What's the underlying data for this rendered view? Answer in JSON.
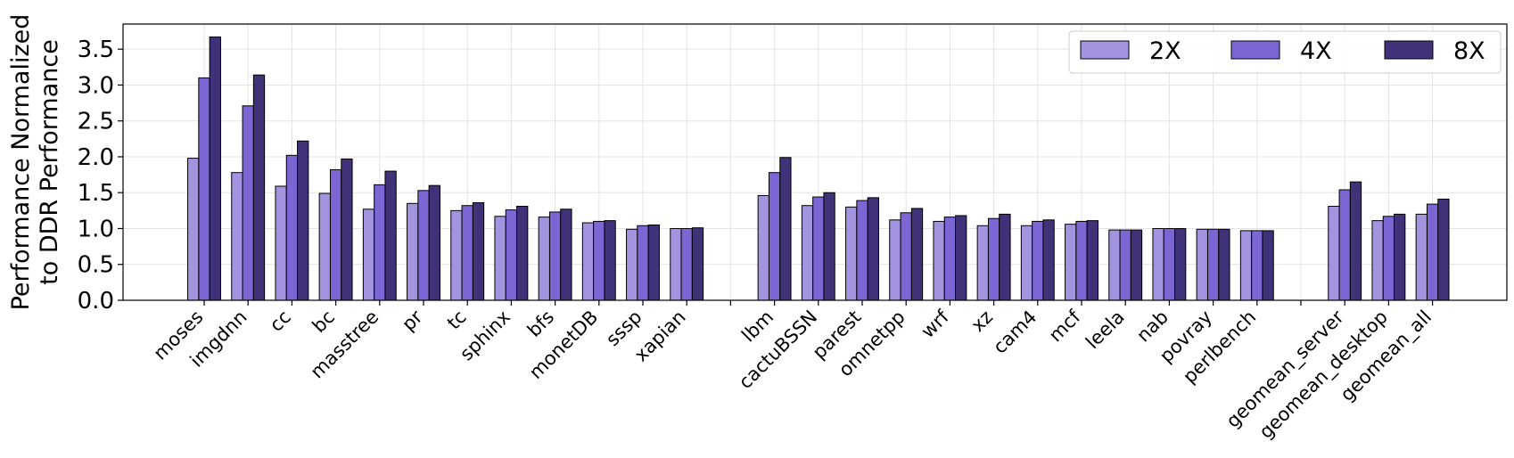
{
  "chart_data": {
    "type": "bar",
    "ylabel_line1": "Performance Normalized",
    "ylabel_line2": "to DDR Performance",
    "ylim": [
      0,
      3.85
    ],
    "yticks": [
      0.0,
      0.5,
      1.0,
      1.5,
      2.0,
      2.5,
      3.0,
      3.5
    ],
    "ytick_labels": [
      "0.0",
      "0.5",
      "1.0",
      "1.5",
      "2.0",
      "2.5",
      "3.0",
      "3.5"
    ],
    "grid": true,
    "legend_position": "top-right",
    "categories": [
      "moses",
      "imgdnn",
      "cc",
      "bc",
      "masstree",
      "pr",
      "tc",
      "sphinx",
      "bfs",
      "monetDB",
      "sssp",
      "xapian",
      "",
      "lbm",
      "cactuBSSN",
      "parest",
      "omnetpp",
      "wrf",
      "xz",
      "cam4",
      "mcf",
      "leela",
      "nab",
      "povray",
      "perlbench",
      "",
      "geomean_server",
      "geomean_desktop",
      "geomean_all"
    ],
    "series": [
      {
        "name": "2X",
        "color": "#a394e0",
        "values": [
          1.98,
          1.78,
          1.59,
          1.49,
          1.27,
          1.35,
          1.25,
          1.17,
          1.16,
          1.08,
          0.99,
          1.0,
          null,
          1.46,
          1.32,
          1.3,
          1.12,
          1.1,
          1.04,
          1.04,
          1.06,
          0.98,
          1.0,
          0.99,
          0.97,
          null,
          1.31,
          1.11,
          1.2
        ]
      },
      {
        "name": "4X",
        "color": "#7b66d4",
        "values": [
          3.1,
          2.71,
          2.02,
          1.82,
          1.61,
          1.53,
          1.32,
          1.26,
          1.23,
          1.1,
          1.04,
          1.0,
          null,
          1.78,
          1.44,
          1.39,
          1.22,
          1.16,
          1.14,
          1.1,
          1.1,
          0.98,
          1.0,
          0.99,
          0.97,
          null,
          1.54,
          1.17,
          1.34
        ]
      },
      {
        "name": "8X",
        "color": "#3f3278",
        "values": [
          3.67,
          3.14,
          2.22,
          1.97,
          1.8,
          1.6,
          1.36,
          1.31,
          1.27,
          1.11,
          1.05,
          1.01,
          null,
          1.99,
          1.5,
          1.43,
          1.28,
          1.18,
          1.2,
          1.12,
          1.11,
          0.98,
          1.0,
          0.99,
          0.97,
          null,
          1.65,
          1.2,
          1.41
        ]
      }
    ]
  }
}
